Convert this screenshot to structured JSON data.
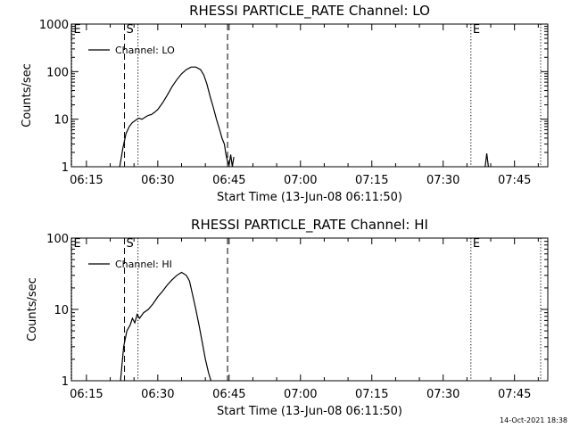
{
  "footer": {
    "timestamp": "14-Oct-2021 18:38"
  },
  "chart_data": [
    {
      "type": "line",
      "title": "RHESSI PARTICLE_RATE Channel: LO",
      "xlabel": "Start Time (13-Jun-08 06:11:50)",
      "ylabel": "Counts/sec",
      "yscale": "log",
      "xlim": [
        "06:11:50",
        "07:52:00"
      ],
      "ylim": [
        1,
        1000
      ],
      "xticks": [
        "06:15",
        "06:30",
        "06:45",
        "07:00",
        "07:15",
        "07:30",
        "07:45"
      ],
      "yticks": [
        "1",
        "10",
        "100",
        "1000"
      ],
      "legend": {
        "position": "top-left",
        "entries": [
          "Channel: LO"
        ]
      },
      "markers": [
        {
          "time": "06:11:55",
          "label": "E",
          "style": "dotted"
        },
        {
          "time": "06:23:00",
          "label": "S",
          "style": "dashed"
        },
        {
          "time": "06:25:50",
          "label": "",
          "style": "dotted"
        },
        {
          "time": "06:44:40",
          "label": "",
          "style": "dashed"
        },
        {
          "time": "07:35:50",
          "label": "E",
          "style": "dotted"
        },
        {
          "time": "07:50:30",
          "label": "",
          "style": "dotted"
        }
      ],
      "series": [
        {
          "name": "Channel: LO",
          "x": [
            "06:22:00",
            "06:22:40",
            "06:23:20",
            "06:24:00",
            "06:24:40",
            "06:25:20",
            "06:26:00",
            "06:26:40",
            "06:27:20",
            "06:28:00",
            "06:28:40",
            "06:29:20",
            "06:30:00",
            "06:31:00",
            "06:32:00",
            "06:33:00",
            "06:34:00",
            "06:35:00",
            "06:36:00",
            "06:37:00",
            "06:38:00",
            "06:39:00",
            "06:39:40",
            "06:40:20",
            "06:41:00",
            "06:41:40",
            "06:42:20",
            "06:43:00",
            "06:43:30",
            "06:44:00",
            "06:44:20",
            "06:44:40",
            "06:45:00",
            "06:45:20",
            "06:45:40",
            "06:46:00"
          ],
          "y": [
            1.0,
            2.5,
            5.0,
            7.0,
            8.5,
            9.5,
            10.5,
            10.0,
            11.0,
            12.0,
            12.5,
            14.0,
            16.0,
            22.0,
            32.0,
            48.0,
            68.0,
            90.0,
            110.0,
            125.0,
            125.0,
            110.0,
            85.0,
            55.0,
            30.0,
            18.0,
            10.0,
            6.0,
            4.0,
            3.0,
            1.8,
            1.3,
            1.1,
            1.8,
            1.0,
            1.6
          ]
        },
        {
          "name": "",
          "x": [
            "07:38:50",
            "07:39:10",
            "07:39:30"
          ],
          "y": [
            1.0,
            1.9,
            1.0
          ]
        }
      ]
    },
    {
      "type": "line",
      "title": "RHESSI PARTICLE_RATE Channel: HI",
      "xlabel": "Start Time (13-Jun-08 06:11:50)",
      "ylabel": "Counts/sec",
      "yscale": "log",
      "xlim": [
        "06:11:50",
        "07:52:00"
      ],
      "ylim": [
        1,
        100
      ],
      "xticks": [
        "06:15",
        "06:30",
        "06:45",
        "07:00",
        "07:15",
        "07:30",
        "07:45"
      ],
      "yticks": [
        "1",
        "10",
        "100"
      ],
      "legend": {
        "position": "top-left",
        "entries": [
          "Channel: HI"
        ]
      },
      "markers": [
        {
          "time": "06:11:55",
          "label": "E",
          "style": "dotted"
        },
        {
          "time": "06:23:00",
          "label": "S",
          "style": "dashed"
        },
        {
          "time": "06:25:50",
          "label": "",
          "style": "dotted"
        },
        {
          "time": "06:44:40",
          "label": "",
          "style": "dashed"
        },
        {
          "time": "07:35:50",
          "label": "E",
          "style": "dotted"
        },
        {
          "time": "07:50:30",
          "label": "",
          "style": "dotted"
        }
      ],
      "series": [
        {
          "name": "Channel: HI",
          "x": [
            "06:22:10",
            "06:22:50",
            "06:23:30",
            "06:24:10",
            "06:24:40",
            "06:25:10",
            "06:25:40",
            "06:26:10",
            "06:27:00",
            "06:28:00",
            "06:29:00",
            "06:30:00",
            "06:31:00",
            "06:32:00",
            "06:33:00",
            "06:34:00",
            "06:35:00",
            "06:36:00",
            "06:36:40",
            "06:37:20",
            "06:38:00",
            "06:38:40",
            "06:39:20",
            "06:40:00",
            "06:40:40",
            "06:41:10"
          ],
          "y": [
            1.0,
            3.0,
            5.0,
            6.0,
            7.5,
            6.5,
            8.5,
            7.5,
            9.0,
            10.0,
            12.0,
            15.0,
            18.0,
            22.0,
            26.0,
            30.0,
            33.0,
            30.0,
            25.0,
            16.0,
            10.0,
            6.0,
            3.5,
            2.0,
            1.3,
            1.0
          ]
        }
      ]
    }
  ]
}
